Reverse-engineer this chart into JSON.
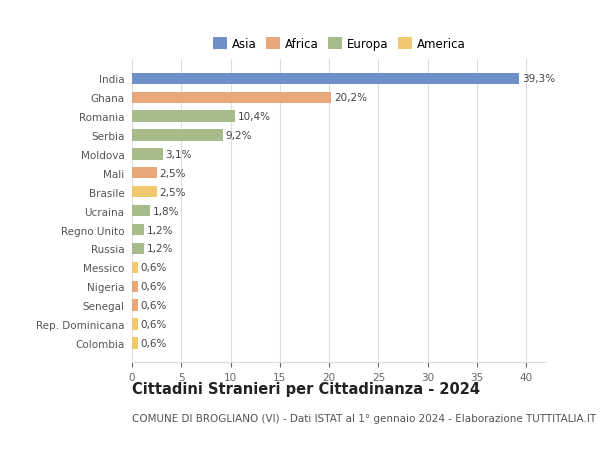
{
  "categories": [
    "India",
    "Ghana",
    "Romania",
    "Serbia",
    "Moldova",
    "Mali",
    "Brasile",
    "Ucraina",
    "Regno Unito",
    "Russia",
    "Messico",
    "Nigeria",
    "Senegal",
    "Rep. Dominicana",
    "Colombia"
  ],
  "values": [
    39.3,
    20.2,
    10.4,
    9.2,
    3.1,
    2.5,
    2.5,
    1.8,
    1.2,
    1.2,
    0.6,
    0.6,
    0.6,
    0.6,
    0.6
  ],
  "labels": [
    "39,3%",
    "20,2%",
    "10,4%",
    "9,2%",
    "3,1%",
    "2,5%",
    "2,5%",
    "1,8%",
    "1,2%",
    "1,2%",
    "0,6%",
    "0,6%",
    "0,6%",
    "0,6%",
    "0,6%"
  ],
  "regions": [
    "Asia",
    "Africa",
    "Europa",
    "Europa",
    "Europa",
    "Africa",
    "America",
    "Europa",
    "Europa",
    "Europa",
    "America",
    "Africa",
    "Africa",
    "America",
    "America"
  ],
  "region_colors": {
    "Asia": "#6e8fc7",
    "Africa": "#e8a87c",
    "Europa": "#a8bb8a",
    "America": "#f0c96e"
  },
  "legend_order": [
    "Asia",
    "Africa",
    "Europa",
    "America"
  ],
  "title": "Cittadini Stranieri per Cittadinanza - 2024",
  "subtitle": "COMUNE DI BROGLIANO (VI) - Dati ISTAT al 1° gennaio 2024 - Elaborazione TUTTITALIA.IT",
  "xlim": [
    0,
    42
  ],
  "xticks": [
    0,
    5,
    10,
    15,
    20,
    25,
    30,
    35,
    40
  ],
  "background_color": "#ffffff",
  "grid_color": "#dddddd",
  "title_fontsize": 10.5,
  "subtitle_fontsize": 7.5,
  "label_fontsize": 7.5,
  "tick_fontsize": 7.5,
  "bar_height": 0.6
}
